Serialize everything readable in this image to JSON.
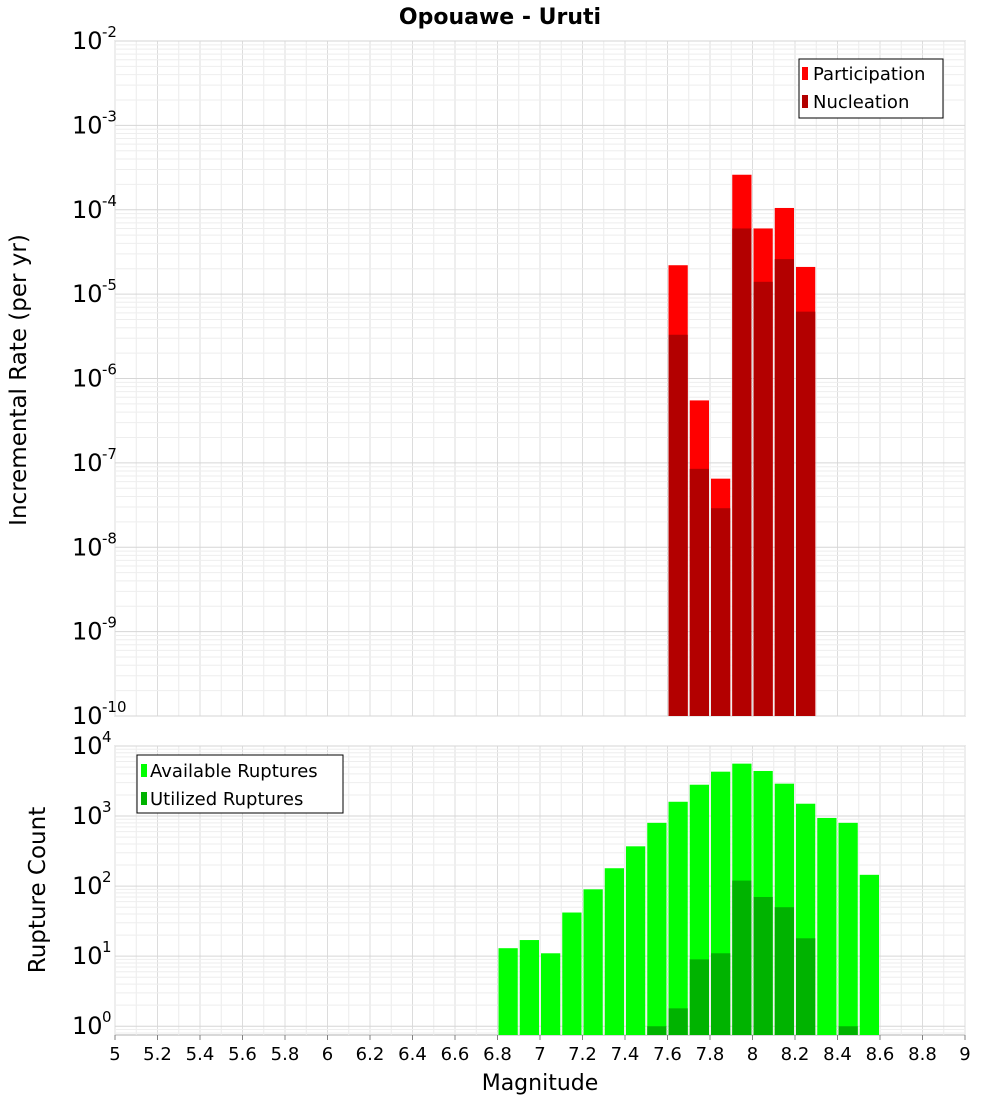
{
  "chart_data": [
    {
      "type": "bar",
      "title": "Opouawe - Uruti",
      "ylabel": "Incremental Rate (per yr)",
      "xlabel": "",
      "yscale": "log",
      "ylim": [
        1e-10,
        0.01
      ],
      "xlim": [
        5,
        9
      ],
      "bin_width": 0.1,
      "grid": true,
      "legend_position": "top-right",
      "x": [
        7.55,
        7.65,
        7.75,
        7.85,
        7.95,
        8.05,
        8.15,
        8.25
      ],
      "series": [
        {
          "name": "Participation",
          "color": "#ff0000",
          "values": [
            1e-10,
            2.2e-05,
            5.5e-07,
            6.5e-08,
            0.00026,
            6e-05,
            0.000105,
            2.1e-05
          ]
        },
        {
          "name": "Nucleation",
          "color": "#b30000",
          "values": [
            1e-10,
            3.3e-06,
            8.5e-08,
            2.9e-08,
            6e-05,
            1.4e-05,
            2.6e-05,
            6.2e-06
          ]
        }
      ],
      "y_tick_exponents": [
        "-10",
        "-9",
        "-8",
        "-7",
        "-6",
        "-5",
        "-4",
        "-3",
        "-2"
      ]
    },
    {
      "type": "bar",
      "title": "",
      "ylabel": "Rupture Count",
      "xlabel": "Magnitude",
      "yscale": "log",
      "ylim": [
        0.75,
        10000
      ],
      "xlim": [
        5,
        9
      ],
      "bin_width": 0.1,
      "grid": true,
      "legend_position": "top-left",
      "x": [
        6.85,
        6.95,
        7.05,
        7.15,
        7.25,
        7.35,
        7.45,
        7.55,
        7.65,
        7.75,
        7.85,
        7.95,
        8.05,
        8.15,
        8.25,
        8.35,
        8.45,
        8.55
      ],
      "series": [
        {
          "name": "Available Ruptures",
          "color": "#00ff00",
          "values": [
            13,
            17,
            11,
            42,
            90,
            180,
            370,
            800,
            1600,
            2800,
            4300,
            5600,
            4400,
            2900,
            1500,
            940,
            800,
            145
          ]
        },
        {
          "name": "Utilized Ruptures",
          "color": "#00b300",
          "values": [
            null,
            null,
            null,
            null,
            null,
            null,
            null,
            1,
            1.8,
            9,
            11,
            120,
            70,
            50,
            18,
            null,
            1,
            null
          ]
        }
      ],
      "y_tick_exponents": [
        "0",
        "1",
        "2",
        "3",
        "4"
      ]
    }
  ],
  "x_tick_labels": [
    "5",
    "5.2",
    "5.4",
    "5.6",
    "5.8",
    "6",
    "6.2",
    "6.4",
    "6.6",
    "6.8",
    "7",
    "7.2",
    "7.4",
    "7.6",
    "7.8",
    "8",
    "8.2",
    "8.4",
    "8.6",
    "8.8",
    "9"
  ],
  "y_tick_base": "10"
}
